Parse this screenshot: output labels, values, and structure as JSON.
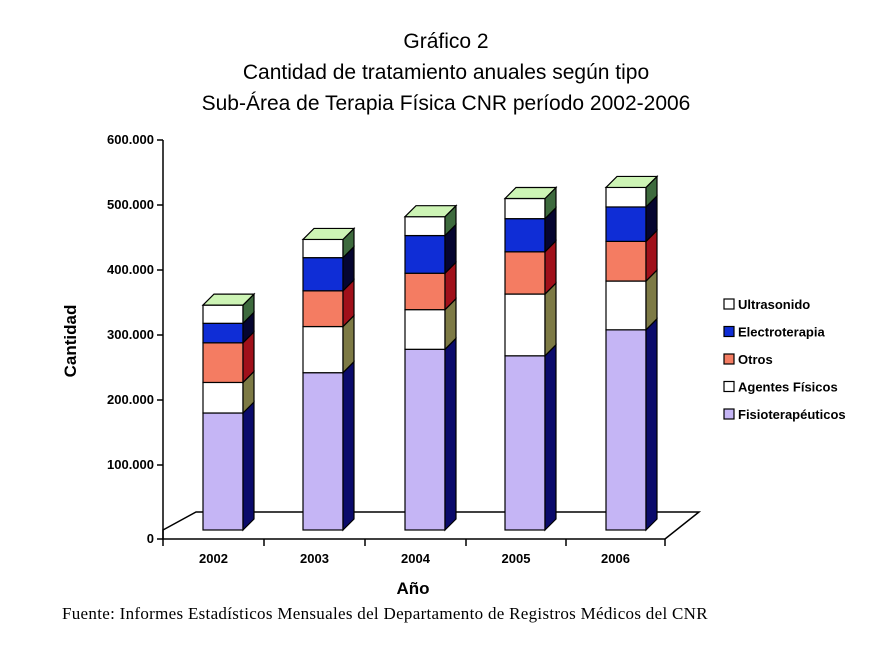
{
  "title": {
    "line1": "Gráfico 2",
    "line2": "Cantidad de tratamiento anuales según tipo",
    "line3": "Sub-Área de Terapia Física CNR período 2002-2006"
  },
  "chart_data": {
    "type": "bar",
    "stacked": true,
    "three_d": true,
    "categories": [
      "2002",
      "2003",
      "2004",
      "2005",
      "2006"
    ],
    "xlabel": "Año",
    "ylabel": "Cantidad",
    "ylim": [
      0,
      600000
    ],
    "yticks": [
      0,
      100000,
      200000,
      300000,
      400000,
      500000,
      600000
    ],
    "ytick_labels": [
      "0",
      "100.000",
      "200.000",
      "300.000",
      "400.000",
      "500.000",
      "600.000"
    ],
    "grid": false,
    "legend_position": "right",
    "series": [
      {
        "name": "Fisioterapéuticos",
        "color": "#c5b5f5",
        "side_color": "#0b0b6b",
        "values": [
          180000,
          242000,
          278000,
          268000,
          308000
        ]
      },
      {
        "name": "Agentes Físicos",
        "color": "#ffffff",
        "side_color": "#7d7a45",
        "values": [
          47000,
          71000,
          61000,
          95000,
          75000
        ]
      },
      {
        "name": "Otros",
        "color": "#f47c62",
        "side_color": "#a0101a",
        "values": [
          61000,
          55000,
          56000,
          65000,
          61000
        ]
      },
      {
        "name": "Electroterapia",
        "color": "#0f2dd6",
        "side_color": "#050530",
        "values": [
          30000,
          51000,
          58000,
          51000,
          53000
        ]
      },
      {
        "name": "Ultrasonido",
        "color": "#ffffff",
        "side_color": "#3d6a3d",
        "values": [
          28000,
          28000,
          29000,
          31000,
          30000
        ]
      }
    ],
    "top_face_color": "#cdf4b5"
  },
  "source": "Fuente: Informes Estadísticos Mensuales del Departamento de Registros Médicos del CNR"
}
